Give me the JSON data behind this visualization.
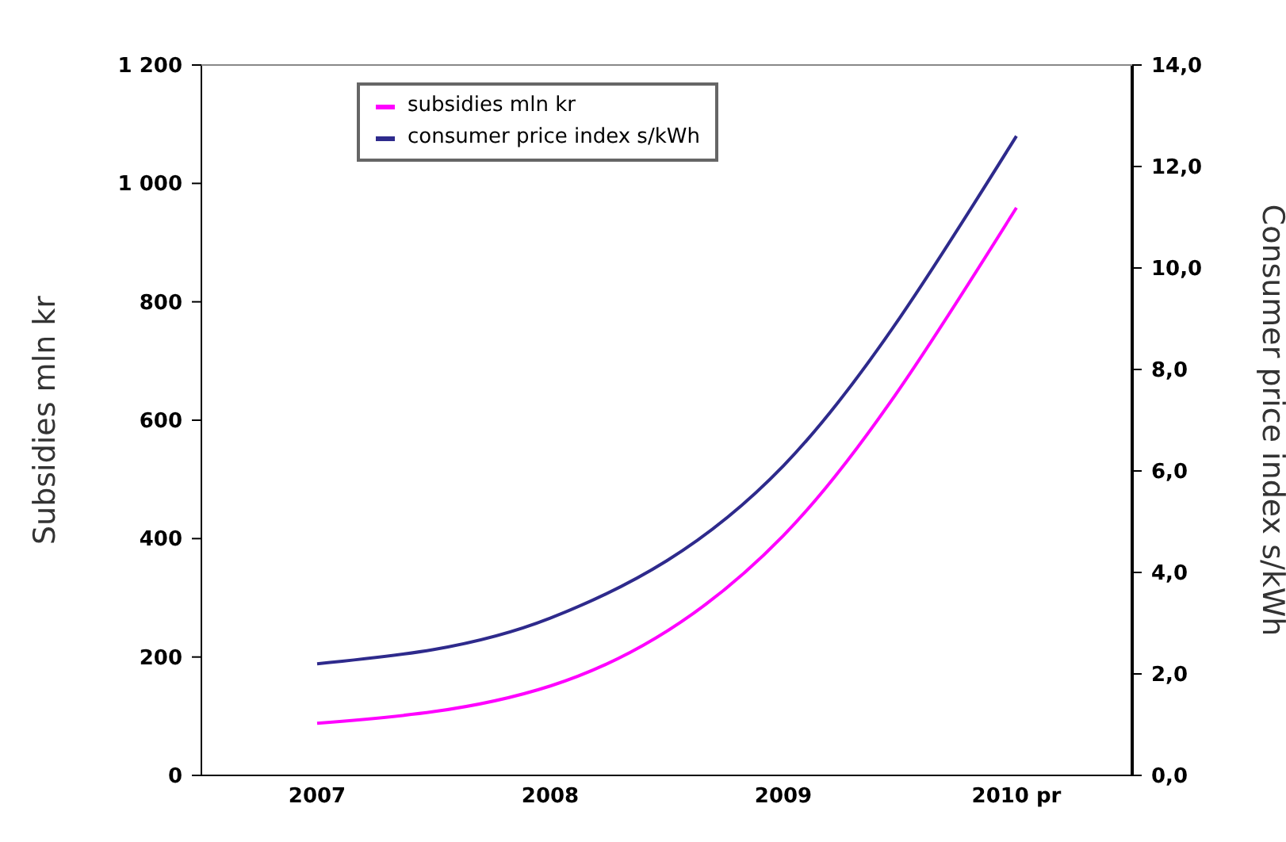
{
  "chart_data": {
    "type": "line",
    "categories": [
      "2007",
      "2008",
      "2009",
      "2010 pr"
    ],
    "series": [
      {
        "name": "subsidies mln kr",
        "color": "#ff00ff",
        "values": [
          88,
          151,
          405,
          959
        ]
      },
      {
        "name": "consumer price index s/kWh",
        "color": "#2e2a8c",
        "values": [
          2.2,
          3.1,
          6.1,
          12.6
        ],
        "axis": "y2"
      }
    ],
    "ylabel": "Subsidies mln kr",
    "y2label": "Consumer price index s/kWh",
    "ylim": [
      0,
      1200
    ],
    "yticks": [
      0,
      200,
      400,
      600,
      800,
      {
        "value": 1000,
        "label": "1 000"
      },
      {
        "value": 1200,
        "label": "1 200"
      }
    ],
    "y2lim": [
      0,
      14
    ],
    "y2ticks": [
      {
        "value": 0,
        "label": "0,0"
      },
      {
        "value": 2,
        "label": "2,0"
      },
      {
        "value": 4,
        "label": "4,0"
      },
      {
        "value": 6,
        "label": "6,0"
      },
      {
        "value": 8,
        "label": "8,0"
      },
      {
        "value": 10,
        "label": "10,0"
      },
      {
        "value": 12,
        "label": "12,0"
      },
      {
        "value": 14,
        "label": "14,0"
      }
    ],
    "legend": "top left",
    "line_style": "solid",
    "grid": false
  }
}
